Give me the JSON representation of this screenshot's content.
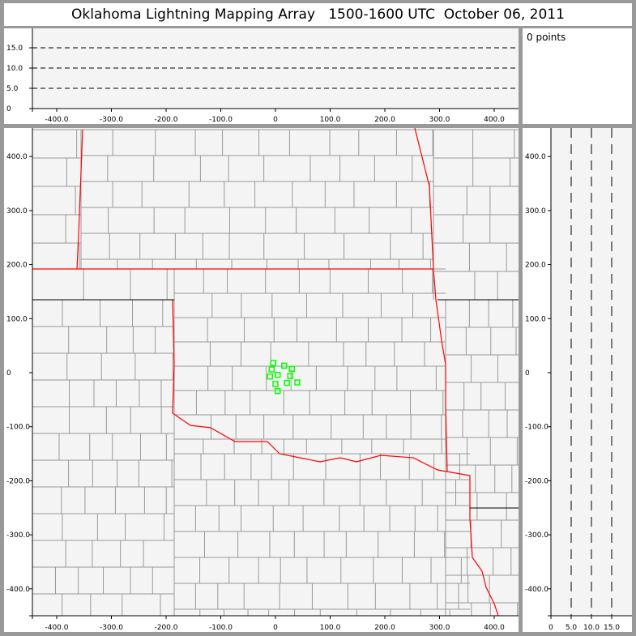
{
  "title": "Oklahoma Lightning Mapping Array   1500-1600 UTC  October 06, 2011",
  "info": {
    "points_label": "0 points"
  },
  "colors": {
    "frame": "#999999",
    "plot_bg": "#f4f4f4",
    "state_border": "#ff0000",
    "county_border": "#999999",
    "station": "#00ff00"
  },
  "chart_data": [
    {
      "type": "scatter",
      "panel": "altitude-vs-east-west",
      "xlim": [
        -450,
        450
      ],
      "ylim": [
        0,
        20
      ],
      "x_ticks": [
        "-400.0",
        "-300.0",
        "-200.0",
        "-100.0",
        "0",
        "100.0",
        "200.0",
        "300.0",
        "400.0"
      ],
      "x_tick_values": [
        -400,
        -300,
        -200,
        -100,
        0,
        100,
        200,
        300,
        400
      ],
      "y_ticks": [
        "0",
        "5.0",
        "10.0",
        "15.0"
      ],
      "y_tick_values": [
        0,
        5,
        10,
        15
      ],
      "dashed_gridlines": [
        5,
        10,
        15
      ],
      "points": []
    },
    {
      "type": "scatter",
      "panel": "plan-view-map",
      "xlim": [
        -445,
        445
      ],
      "ylim": [
        -450,
        455
      ],
      "x_ticks": [
        "-400.0",
        "-300.0",
        "-200.0",
        "-100.0",
        "0",
        "100.0",
        "200.0",
        "300.0",
        "400.0"
      ],
      "x_tick_values": [
        -400,
        -300,
        -200,
        -100,
        0,
        100,
        200,
        300,
        400
      ],
      "y_ticks": [
        "400.0",
        "300.0",
        "200.0",
        "100.0",
        "0",
        "-100.0",
        "-200.0",
        "-300.0",
        "-400.0"
      ],
      "y_tick_values": [
        400,
        300,
        200,
        100,
        0,
        -100,
        -200,
        -300,
        -400
      ],
      "stations_marker": "green-square",
      "stations": [
        [
          -4,
          18
        ],
        [
          16,
          13
        ],
        [
          30,
          7
        ],
        [
          -7,
          6
        ],
        [
          4,
          -4
        ],
        [
          -10,
          -7
        ],
        [
          27,
          -6
        ],
        [
          0,
          -21
        ],
        [
          21,
          -19
        ],
        [
          40,
          -18
        ],
        [
          4,
          -34
        ]
      ],
      "points": []
    },
    {
      "type": "scatter",
      "panel": "north-south-vs-altitude",
      "xlim": [
        0,
        20
      ],
      "ylim": [
        -450,
        455
      ],
      "x_ticks": [
        "0",
        "5.0",
        "10.0",
        "15.0"
      ],
      "x_tick_values": [
        0,
        5,
        10,
        15
      ],
      "y_ticks": [
        "400.0",
        "300.0",
        "200.0",
        "100.0",
        "0",
        "-100.0",
        "-200.0",
        "-300.0",
        "-400.0"
      ],
      "y_tick_values": [
        400,
        300,
        200,
        100,
        0,
        -100,
        -200,
        -300,
        -400
      ],
      "dashed_gridlines": [
        5,
        10,
        15
      ],
      "points": []
    }
  ]
}
